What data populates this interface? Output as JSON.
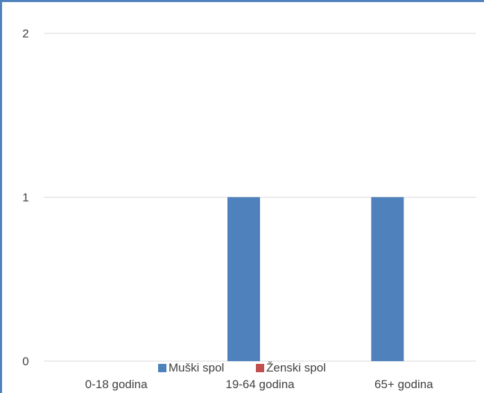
{
  "colors": {
    "frame_border": "#4f81bd",
    "grid": "#d9d9d9",
    "text": "#404040",
    "male": "#4f81bd",
    "female": "#c0504d"
  },
  "chart_data": {
    "type": "bar",
    "categories": [
      "0-18 godina",
      "19-64 godina",
      "65+ godina"
    ],
    "series": [
      {
        "name": "Muški spol",
        "values": [
          0,
          1,
          1
        ],
        "color": "#4f81bd"
      },
      {
        "name": "Ženski spol",
        "values": [
          0,
          0,
          0
        ],
        "color": "#c0504d"
      }
    ],
    "ylim": [
      0,
      2
    ],
    "yticks": [
      "0",
      "1",
      "2"
    ],
    "grid": true,
    "legend": "bottom",
    "title": "",
    "xlabel": "",
    "ylabel": ""
  }
}
